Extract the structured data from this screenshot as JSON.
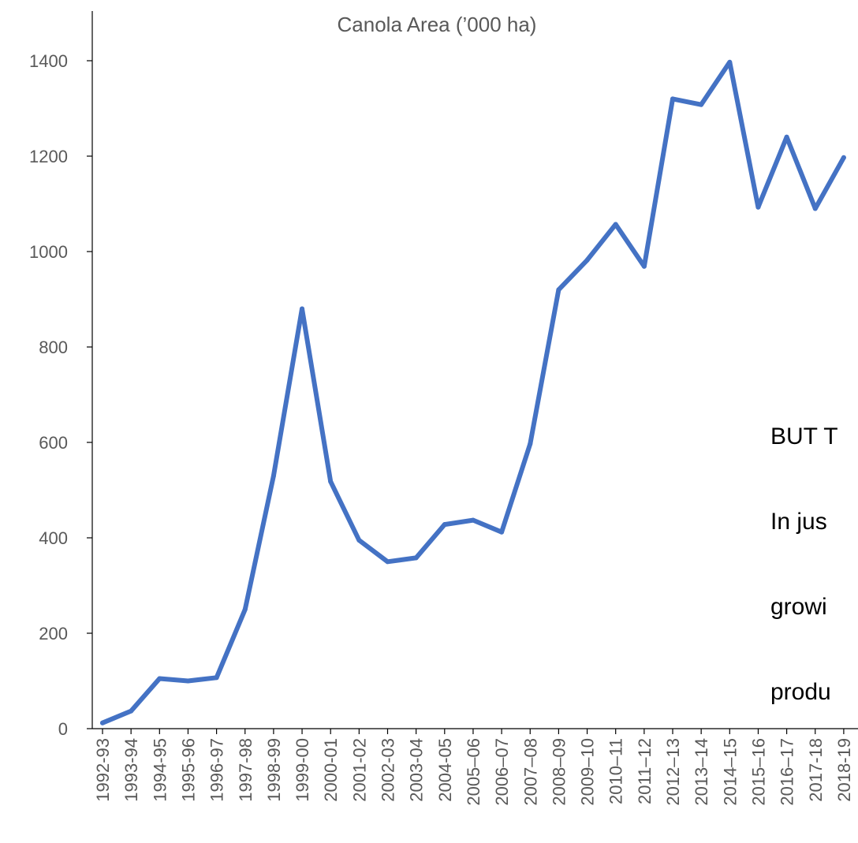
{
  "chart_data": {
    "type": "line",
    "title": "Canola Area (’000 ha)",
    "xlabel": "",
    "ylabel": "",
    "ylim": [
      0,
      1400
    ],
    "yticks": [
      0,
      200,
      400,
      600,
      800,
      1000,
      1200,
      1400
    ],
    "grid": false,
    "legend": "none",
    "categories": [
      "1992-93",
      "1993-94",
      "1994-95",
      "1995-96",
      "1996-97",
      "1997-98",
      "1998-99",
      "1999-00",
      "2000-01",
      "2001-02",
      "2002-03",
      "2003-04",
      "2004-05",
      "2005–06",
      "2006–07",
      "2007–08",
      "2008–09",
      "2009–10",
      "2010–11",
      "2011–12",
      "2012–13",
      "2013–14",
      "2014–15",
      "2015–16",
      "2016–17",
      "2017-18",
      "2018-19"
    ],
    "series": [
      {
        "color": "#4472C4",
        "values": [
          12,
          37,
          105,
          100,
          107,
          250,
          530,
          880,
          518,
          395,
          350,
          358,
          428,
          437,
          412,
          597,
          920,
          982,
          1057,
          969,
          1320,
          1308,
          1397,
          1093,
          1240,
          1090,
          1197
        ]
      }
    ]
  },
  "annotation": {
    "lines": [
      "BUT T",
      "In jus",
      "growi",
      "produ"
    ]
  }
}
